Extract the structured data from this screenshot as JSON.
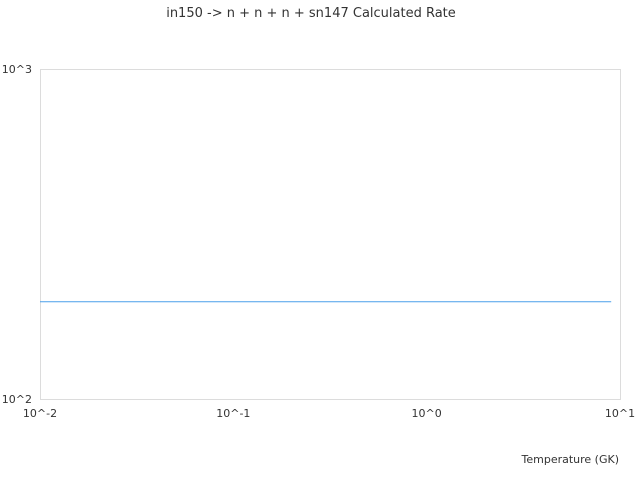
{
  "chart_data": {
    "type": "line",
    "title": "in150 -> n + n + n + sn147 Calculated Rate",
    "xlabel": "Temperature (GK)",
    "ylabel": "",
    "x_scale": "log",
    "y_scale": "log",
    "xlim": [
      0.01,
      10
    ],
    "ylim": [
      100,
      1000
    ],
    "x_ticks": [
      {
        "value": 0.01,
        "label": "10^-2"
      },
      {
        "value": 0.1,
        "label": "10^-1"
      },
      {
        "value": 1,
        "label": "10^0"
      },
      {
        "value": 10,
        "label": "10^1"
      }
    ],
    "y_ticks": [
      {
        "value": 100,
        "label": "10^2"
      },
      {
        "value": 1000,
        "label": "10^3"
      }
    ],
    "grid": false,
    "series": [
      {
        "color": "#4a9fea",
        "x": [
          0.01,
          9.0
        ],
        "y": [
          197,
          197
        ]
      }
    ]
  }
}
